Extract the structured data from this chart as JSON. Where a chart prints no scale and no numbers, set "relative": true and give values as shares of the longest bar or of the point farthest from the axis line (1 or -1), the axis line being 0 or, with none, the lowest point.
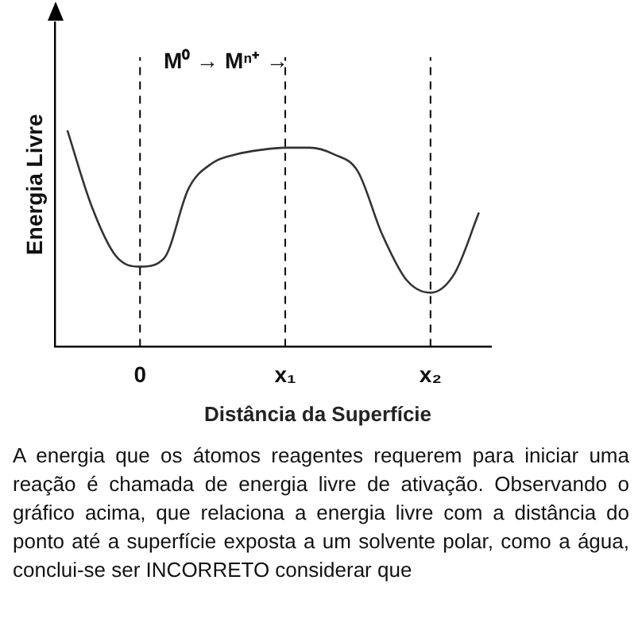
{
  "chart_data": {
    "type": "line",
    "relative": true,
    "xlabel": "Distância da Superfície",
    "ylabel": "Energia Livre",
    "categories": [
      null,
      null,
      null,
      "0",
      null,
      null,
      null,
      null,
      null,
      "x₁",
      null,
      null,
      null,
      null,
      null,
      "x₂",
      null,
      null
    ],
    "series": [
      {
        "color": "#333333",
        "values": [
          1,
          0.65,
          0.42,
          0.37,
          0.41,
          0.73,
          0.85,
          0.89,
          0.91,
          0.92,
          0.92,
          0.89,
          0.81,
          0.52,
          0.31,
          0.25,
          0.34,
          0.62
        ]
      }
    ],
    "ref_lines": [
      {
        "axis": "x",
        "value": "0",
        "line_style": "dashed",
        "color": "#000000"
      },
      {
        "axis": "x",
        "value": "x₁",
        "line_style": "dashed",
        "color": "#000000"
      },
      {
        "axis": "x",
        "value": "x₂",
        "line_style": "dashed",
        "color": "#000000"
      }
    ],
    "grid": false,
    "legend": false,
    "marker": "none",
    "line_style": "solid",
    "annotations": [
      "M⁰ → Mⁿ⁺ →",
      "A energia que os átomos reagentes requerem para iniciar uma reação é chamada de energia livre de ativação. Observando o gráfico acima, que relaciona a energia livre com a distância do ponto até a superfície exposta a um solvente polar, como a água, conclui-se ser INCORRETO considerar que"
    ]
  }
}
